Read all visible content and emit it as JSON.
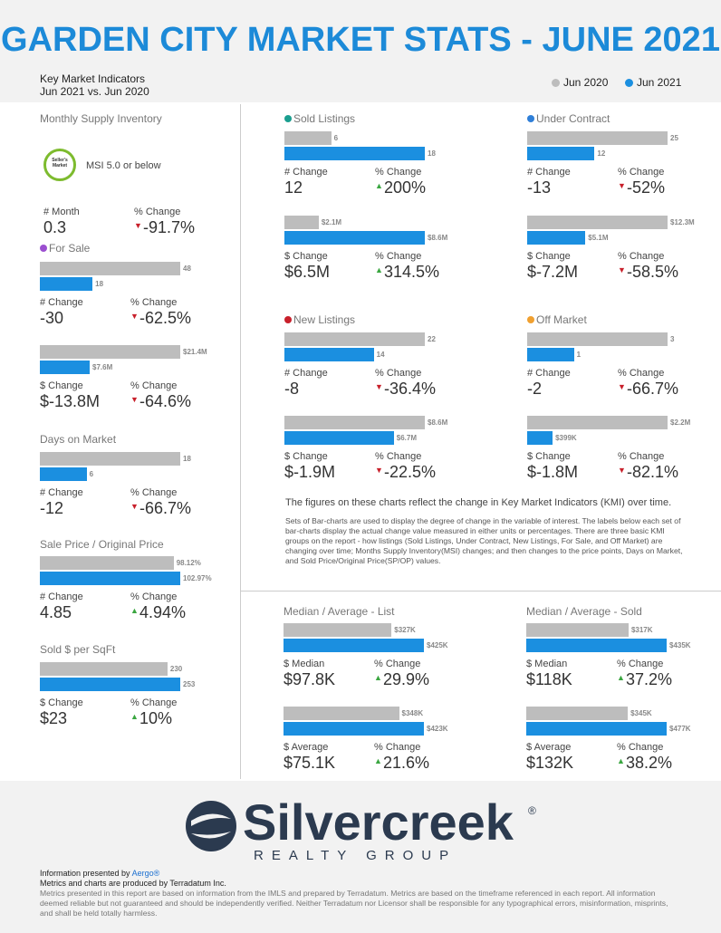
{
  "header": {
    "title": "GARDEN CITY MARKET STATS - JUNE 2021",
    "kmi": "Key Market Indicators",
    "period": "Jun 2021 vs. Jun 2020",
    "legend": [
      "Jun 2020",
      "Jun 2021"
    ]
  },
  "panels": [
    {
      "title": "Monthly Supply Inventory",
      "badge": "Seller's Market",
      "note": "MSI 5.0 or below",
      "stats": [
        {
          "label": "# Month",
          "value": "0.3"
        },
        {
          "label": "% Change",
          "value": "-91.7%"
        }
      ]
    },
    {
      "title": "For Sale",
      "dot": "#9b4fd0",
      "groups": [
        {
          "values": [
            48,
            18
          ],
          "stats": [
            {
              "label": "# Change",
              "value": "-30"
            },
            {
              "label": "% Change",
              "value": "-62.5%"
            }
          ]
        },
        {
          "values": [
            21400000,
            7600000
          ],
          "value_labels": [
            "$21.4M",
            "$7.6M"
          ],
          "stats": [
            {
              "label": "$ Change",
              "value": "$-13.8M"
            },
            {
              "label": "% Change",
              "value": "-64.6%"
            }
          ]
        }
      ]
    },
    {
      "title": "Days on Market",
      "groups": [
        {
          "values": [
            18,
            6
          ],
          "stats": [
            {
              "label": "# Change",
              "value": "-12"
            },
            {
              "label": "% Change",
              "value": "-66.7%"
            }
          ]
        }
      ]
    },
    {
      "title": "Sale Price / Original Price",
      "groups": [
        {
          "values": [
            98.12,
            102.97
          ],
          "value_labels": [
            "98.12%",
            "102.97%"
          ],
          "stats": [
            {
              "label": "# Change",
              "value": "4.85"
            },
            {
              "label": "% Change",
              "value": "4.94%"
            }
          ]
        }
      ]
    },
    {
      "title": "Sold $ per SqFt",
      "groups": [
        {
          "values": [
            230,
            253
          ],
          "stats": [
            {
              "label": "$ Change",
              "value": "$23"
            },
            {
              "label": "% Change",
              "value": "10%"
            }
          ]
        }
      ]
    },
    {
      "title": "Sold Listings",
      "dot": "#1a9e8f",
      "groups": [
        {
          "values": [
            6,
            18
          ],
          "stats": [
            {
              "label": "# Change",
              "value": "12"
            },
            {
              "label": "% Change",
              "value": "200%"
            }
          ]
        },
        {
          "values": [
            2100000,
            8600000
          ],
          "value_labels": [
            "$2.1M",
            "$8.6M"
          ],
          "stats": [
            {
              "label": "$ Change",
              "value": "$6.5M"
            },
            {
              "label": "% Change",
              "value": "314.5%"
            }
          ]
        }
      ]
    },
    {
      "title": "Under Contract",
      "dot": "#2f7fd8",
      "groups": [
        {
          "values": [
            25,
            12
          ],
          "stats": [
            {
              "label": "# Change",
              "value": "-13"
            },
            {
              "label": "% Change",
              "value": "-52%"
            }
          ]
        },
        {
          "values": [
            12300000,
            5100000
          ],
          "value_labels": [
            "$12.3M",
            "$5.1M"
          ],
          "stats": [
            {
              "label": "$ Change",
              "value": "$-7.2M"
            },
            {
              "label": "% Change",
              "value": "-58.5%"
            }
          ]
        }
      ]
    },
    {
      "title": "New Listings",
      "dot": "#c8202b",
      "groups": [
        {
          "values": [
            22,
            14
          ],
          "stats": [
            {
              "label": "# Change",
              "value": "-8"
            },
            {
              "label": "% Change",
              "value": "-36.4%"
            }
          ]
        },
        {
          "values": [
            8600000,
            6700000
          ],
          "value_labels": [
            "$8.6M",
            "$6.7M"
          ],
          "stats": [
            {
              "label": "$ Change",
              "value": "$-1.9M"
            },
            {
              "label": "% Change",
              "value": "-22.5%"
            }
          ]
        }
      ]
    },
    {
      "title": "Off Market",
      "dot": "#f0a030",
      "groups": [
        {
          "values": [
            3,
            1
          ],
          "stats": [
            {
              "label": "# Change",
              "value": "-2"
            },
            {
              "label": "% Change",
              "value": "-66.7%"
            }
          ]
        },
        {
          "values": [
            2200000,
            399000
          ],
          "value_labels": [
            "$2.2M",
            "$399K"
          ],
          "stats": [
            {
              "label": "$ Change",
              "value": "$-1.8M"
            },
            {
              "label": "% Change",
              "value": "-82.1%"
            }
          ]
        }
      ]
    },
    {
      "title": "Median / Average - List",
      "groups": [
        {
          "values": [
            327000,
            425000
          ],
          "value_labels": [
            "$327K",
            "$425K"
          ],
          "stats": [
            {
              "label": "$ Median",
              "value": "$97.8K"
            },
            {
              "label": "% Change",
              "value": "29.9%"
            }
          ]
        },
        {
          "values": [
            348000,
            423000
          ],
          "value_labels": [
            "$348K",
            "$423K"
          ],
          "stats": [
            {
              "label": "$ Average",
              "value": "$75.1K"
            },
            {
              "label": "% Change",
              "value": "21.6%"
            }
          ]
        }
      ]
    },
    {
      "title": "Median / Average - Sold",
      "groups": [
        {
          "values": [
            317000,
            435000
          ],
          "value_labels": [
            "$317K",
            "$435K"
          ],
          "stats": [
            {
              "label": "$ Median",
              "value": "$118K"
            },
            {
              "label": "% Change",
              "value": "37.2%"
            }
          ]
        },
        {
          "values": [
            345000,
            477000
          ],
          "value_labels": [
            "$345K",
            "$477K"
          ],
          "stats": [
            {
              "label": "$ Average",
              "value": "$132K"
            },
            {
              "label": "% Change",
              "value": "38.2%"
            }
          ]
        }
      ]
    }
  ],
  "explanation": {
    "heading": "The figures on these charts reflect the change in Key Market Indicators (KMI) over time.",
    "body": "Sets of Bar-charts are used to display the degree of change in the variable of interest. The labels below each set of bar-charts display the actual change value measured in either units or percentages. There are three basic KMI groups on the report - how listings (Sold Listings, Under Contract, New Listings, For Sale, and Off Market) are changing over time; Months Supply Inventory(MSI) changes; and then changes to the price points, Days on Market, and Sold Price/Original Price(SP/OP) values."
  },
  "footer": {
    "logo": "Silvercreek",
    "registered": "®",
    "tagline": "REALTY GROUP",
    "presented_prefix": "Information presented by",
    "presented_brand": "Aergo®",
    "produced": "Metrics and charts are produced by Terradatum Inc.",
    "disclaimer": "Metrics presented in this report are based on information from the IMLS and prepared by Terradatum. Metrics are based on the timeframe referenced in each report. All information deemed reliable but not guaranteed and should be independently verified. Neither Terradatum nor Licensor shall be responsible for any typographical errors, misinformation, misprints, and shall be held totally harmless."
  }
}
